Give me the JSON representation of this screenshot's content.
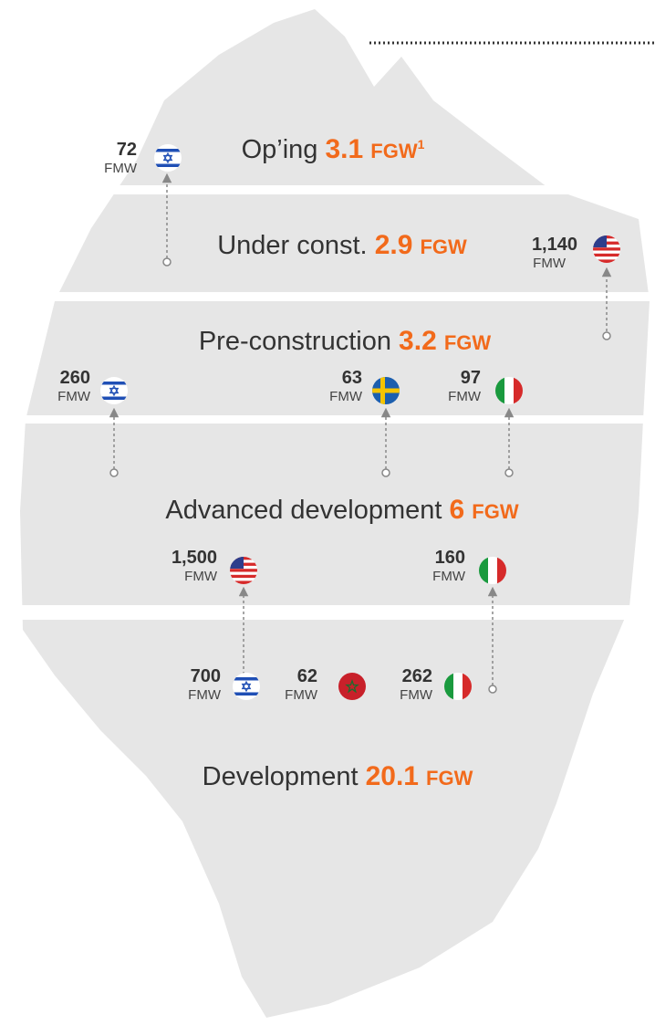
{
  "layers": [
    {
      "label": "Op’ing",
      "value": "3.1",
      "unit": "FGW",
      "footnote": "1",
      "projects": [
        {
          "value": "72",
          "unit": "FMW"
        }
      ]
    },
    {
      "label": "Under const.",
      "value": "2.9",
      "unit": "FGW",
      "projects": [
        {
          "value": "1,140",
          "unit": "FMW"
        }
      ]
    },
    {
      "label": "Pre-construction",
      "value": "3.2",
      "unit": "FGW",
      "projects": [
        {
          "value": "260",
          "unit": "FMW"
        },
        {
          "value": "63",
          "unit": "FMW"
        },
        {
          "value": "97",
          "unit": "FMW"
        }
      ]
    },
    {
      "label": "Advanced development",
      "value": "6",
      "unit": "FGW",
      "projects": [
        {
          "value": "1,500",
          "unit": "FMW"
        },
        {
          "value": "160",
          "unit": "FMW"
        }
      ]
    },
    {
      "label": "Development",
      "value": "20.1",
      "unit": "FGW",
      "projects": [
        {
          "value": "700",
          "unit": "FMW"
        },
        {
          "value": "62",
          "unit": "FMW"
        },
        {
          "value": "262",
          "unit": "FMW"
        }
      ]
    }
  ]
}
